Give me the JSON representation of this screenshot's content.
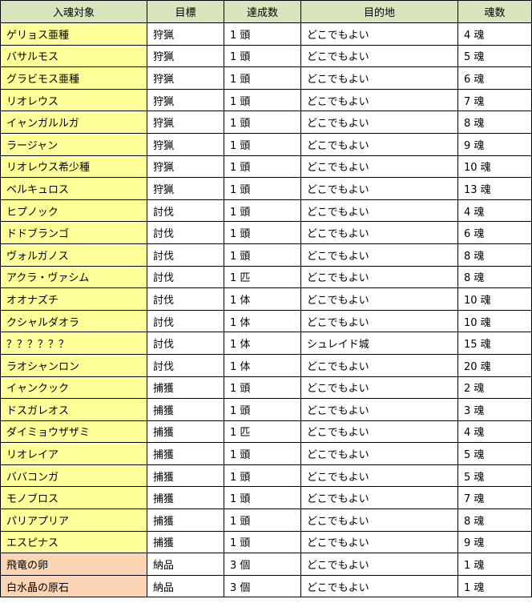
{
  "colors": {
    "header": "#d8e4bc",
    "hunt_target": "#ffff99",
    "delivery_target": "#fcd5b4"
  },
  "headers": [
    "入魂対象",
    "目標",
    "達成数",
    "目的地",
    "魂数"
  ],
  "rows": [
    {
      "target": "ゲリョス亜種",
      "goal": "狩猟",
      "count": "1 頭",
      "destination": "どこでもよい",
      "souls": "4 魂",
      "type": "yellow"
    },
    {
      "target": "バサルモス",
      "goal": "狩猟",
      "count": "1 頭",
      "destination": "どこでもよい",
      "souls": "5 魂",
      "type": "yellow"
    },
    {
      "target": "グラビモス亜種",
      "goal": "狩猟",
      "count": "1 頭",
      "destination": "どこでもよい",
      "souls": "6 魂",
      "type": "yellow"
    },
    {
      "target": "リオレウス",
      "goal": "狩猟",
      "count": "1 頭",
      "destination": "どこでもよい",
      "souls": "7 魂",
      "type": "yellow"
    },
    {
      "target": "イャンガルルガ",
      "goal": "狩猟",
      "count": "1 頭",
      "destination": "どこでもよい",
      "souls": "8 魂",
      "type": "yellow"
    },
    {
      "target": "ラージャン",
      "goal": "狩猟",
      "count": "1 頭",
      "destination": "どこでもよい",
      "souls": "9 魂",
      "type": "yellow"
    },
    {
      "target": "リオレウス希少種",
      "goal": "狩猟",
      "count": "1 頭",
      "destination": "どこでもよい",
      "souls": "10 魂",
      "type": "yellow"
    },
    {
      "target": "ベルキュロス",
      "goal": "狩猟",
      "count": "1 頭",
      "destination": "どこでもよい",
      "souls": "13 魂",
      "type": "yellow"
    },
    {
      "target": "ヒプノック",
      "goal": "討伐",
      "count": "1 頭",
      "destination": "どこでもよい",
      "souls": "4 魂",
      "type": "yellow"
    },
    {
      "target": "ドドブランゴ",
      "goal": "討伐",
      "count": "1 頭",
      "destination": "どこでもよい",
      "souls": "6 魂",
      "type": "yellow"
    },
    {
      "target": "ヴォルガノス",
      "goal": "討伐",
      "count": "1 頭",
      "destination": "どこでもよい",
      "souls": "8 魂",
      "type": "yellow"
    },
    {
      "target": "アクラ・ヴァシム",
      "goal": "討伐",
      "count": "1 匹",
      "destination": "どこでもよい",
      "souls": "8 魂",
      "type": "yellow"
    },
    {
      "target": "オオナズチ",
      "goal": "討伐",
      "count": "1 体",
      "destination": "どこでもよい",
      "souls": "10 魂",
      "type": "yellow"
    },
    {
      "target": "クシャルダオラ",
      "goal": "討伐",
      "count": "1 体",
      "destination": "どこでもよい",
      "souls": "10 魂",
      "type": "yellow"
    },
    {
      "target": "？？？？？？",
      "goal": "討伐",
      "count": "1 体",
      "destination": "シュレイド城",
      "souls": "15 魂",
      "type": "yellow"
    },
    {
      "target": "ラオシャンロン",
      "goal": "討伐",
      "count": "1 体",
      "destination": "どこでもよい",
      "souls": "20 魂",
      "type": "yellow"
    },
    {
      "target": "イャンクック",
      "goal": "捕獲",
      "count": "1 頭",
      "destination": "どこでもよい",
      "souls": "2 魂",
      "type": "yellow"
    },
    {
      "target": "ドスガレオス",
      "goal": "捕獲",
      "count": "1 頭",
      "destination": "どこでもよい",
      "souls": "3 魂",
      "type": "yellow"
    },
    {
      "target": "ダイミョウザザミ",
      "goal": "捕獲",
      "count": "1 匹",
      "destination": "どこでもよい",
      "souls": "4 魂",
      "type": "yellow"
    },
    {
      "target": "リオレイア",
      "goal": "捕獲",
      "count": "1 頭",
      "destination": "どこでもよい",
      "souls": "5 魂",
      "type": "yellow"
    },
    {
      "target": "ババコンガ",
      "goal": "捕獲",
      "count": "1 頭",
      "destination": "どこでもよい",
      "souls": "5 魂",
      "type": "yellow"
    },
    {
      "target": "モノブロス",
      "goal": "捕獲",
      "count": "1 頭",
      "destination": "どこでもよい",
      "souls": "7 魂",
      "type": "yellow"
    },
    {
      "target": "パリアプリア",
      "goal": "捕獲",
      "count": "1 頭",
      "destination": "どこでもよい",
      "souls": "8 魂",
      "type": "yellow"
    },
    {
      "target": "エスピナス",
      "goal": "捕獲",
      "count": "1 頭",
      "destination": "どこでもよい",
      "souls": "9 魂",
      "type": "yellow"
    },
    {
      "target": "飛竜の卵",
      "goal": "納品",
      "count": "3 個",
      "destination": "どこでもよい",
      "souls": "1 魂",
      "type": "orange"
    },
    {
      "target": "白水晶の原石",
      "goal": "納品",
      "count": "3 個",
      "destination": "どこでもよい",
      "souls": "1 魂",
      "type": "orange"
    }
  ]
}
